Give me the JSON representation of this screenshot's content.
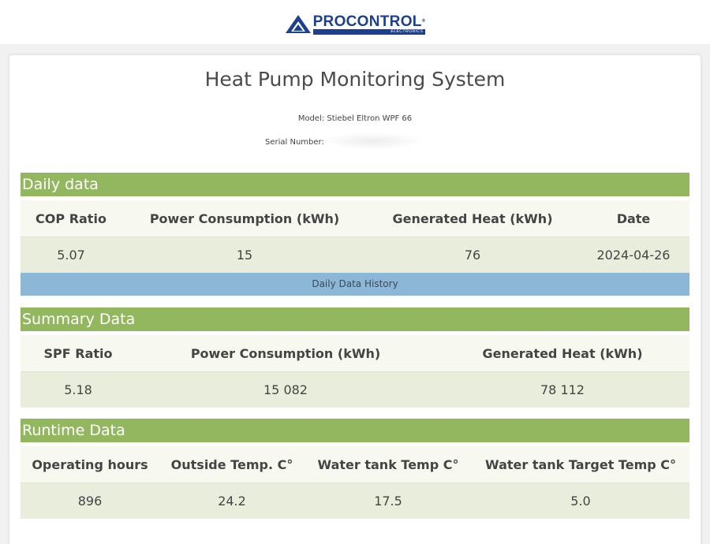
{
  "header": {
    "logo_name": "PROCONTROL",
    "logo_reg": "®",
    "logo_sub": "ELECTRONICS"
  },
  "page": {
    "title": "Heat Pump Monitoring System",
    "model": "Model: Stiebel Eltron WPF 66",
    "serial_label": "Serial Number:"
  },
  "daily": {
    "title": "Daily data",
    "columns": [
      "COP Ratio",
      "Power Consumption (kWh)",
      "Generated Heat (kWh)",
      "Date"
    ],
    "values": [
      "5.07",
      "15",
      "76",
      "2024-04-26"
    ],
    "history_label": "Daily Data History"
  },
  "summary": {
    "title": "Summary Data",
    "columns": [
      "SPF Ratio",
      "Power Consumption (kWh)",
      "Generated Heat (kWh)"
    ],
    "values": [
      "5.18",
      "15 082",
      "78 112"
    ]
  },
  "runtime": {
    "title": "Runtime Data",
    "columns": [
      "Operating hours",
      "Outside Temp. C°",
      "Water tank Temp C°",
      "Water tank Target Temp C°"
    ],
    "values": [
      "896",
      "24.2",
      "17.5",
      "5.0"
    ]
  },
  "colors": {
    "section_header": "#93b75f",
    "history_bar": "#8db7d6",
    "logo_blue": "#1d3f8f"
  }
}
